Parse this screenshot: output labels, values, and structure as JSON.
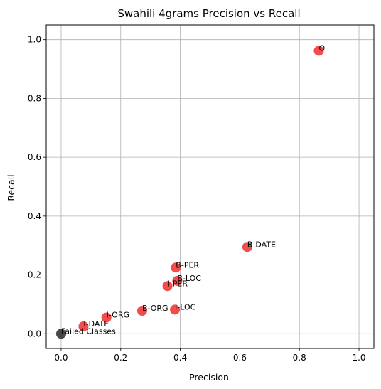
{
  "chart_data": {
    "type": "scatter",
    "title": "Swahili 4grams Precision vs Recall",
    "xlabel": "Precision",
    "ylabel": "Recall",
    "xlim": [
      -0.05,
      1.05
    ],
    "ylim": [
      -0.05,
      1.05
    ],
    "xticks": [
      "0.0",
      "0.2",
      "0.4",
      "0.6",
      "0.8",
      "1.0"
    ],
    "yticks": [
      "0.0",
      "0.2",
      "0.4",
      "0.6",
      "0.8",
      "1.0"
    ],
    "grid": true,
    "colors": {
      "point": "#f03a3a",
      "failed": "#333333",
      "grid": "#b0b0b0"
    },
    "points": [
      {
        "label": "O",
        "x": 0.865,
        "y": 0.962,
        "color": "#f03a3a"
      },
      {
        "label": "B-DATE",
        "x": 0.625,
        "y": 0.295,
        "color": "#f03a3a"
      },
      {
        "label": "B-PER",
        "x": 0.385,
        "y": 0.225,
        "color": "#f03a3a"
      },
      {
        "label": "B-LOC",
        "x": 0.39,
        "y": 0.18,
        "color": "#f03a3a"
      },
      {
        "label": "I-PER",
        "x": 0.357,
        "y": 0.162,
        "color": "#f03a3a"
      },
      {
        "label": "B-ORG",
        "x": 0.272,
        "y": 0.078,
        "color": "#f03a3a"
      },
      {
        "label": "I-LOC",
        "x": 0.382,
        "y": 0.082,
        "color": "#f03a3a"
      },
      {
        "label": "I-ORG",
        "x": 0.152,
        "y": 0.055,
        "color": "#f03a3a"
      },
      {
        "label": "I-DATE",
        "x": 0.075,
        "y": 0.025,
        "color": "#f03a3a"
      },
      {
        "label": "Failed Classes",
        "x": 0.0,
        "y": 0.0,
        "color": "#333333"
      }
    ]
  }
}
